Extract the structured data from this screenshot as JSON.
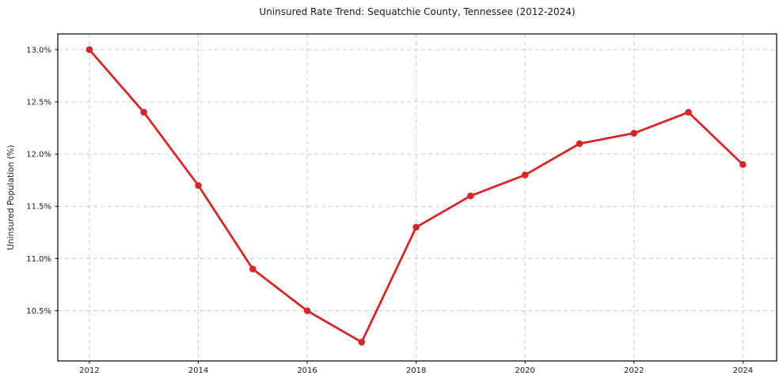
{
  "chart_data": {
    "type": "line",
    "title": "Uninsured Rate Trend: Sequatchie County, Tennessee (2012-2024)",
    "xlabel": "",
    "ylabel": "Uninsured Population (%)",
    "x": [
      2012,
      2013,
      2014,
      2015,
      2016,
      2017,
      2018,
      2019,
      2020,
      2021,
      2022,
      2023,
      2024
    ],
    "values": [
      13.0,
      12.4,
      11.7,
      10.9,
      10.5,
      10.2,
      11.3,
      11.6,
      11.8,
      12.1,
      12.2,
      12.4,
      11.9
    ],
    "series_name": "Uninsured Population (%)",
    "x_tick_values": [
      2012,
      2014,
      2016,
      2018,
      2020,
      2022,
      2024
    ],
    "x_tick_labels": [
      "2012",
      "2014",
      "2016",
      "2018",
      "2020",
      "2022",
      "2024"
    ],
    "y_tick_values": [
      10.5,
      11.0,
      11.5,
      12.0,
      12.5,
      13.0
    ],
    "y_tick_labels": [
      "10.5%",
      "11.0%",
      "11.5%",
      "12.0%",
      "12.5%",
      "13.0%"
    ],
    "xlim": [
      2011.42,
      2024.62
    ],
    "ylim": [
      10.02,
      13.15
    ],
    "grid": true,
    "grid_style": "dashed",
    "grid_color": "#cccccc",
    "line_color": "#d62728",
    "marker": "circle",
    "spine_color": "#000000",
    "legend_position": "none"
  }
}
